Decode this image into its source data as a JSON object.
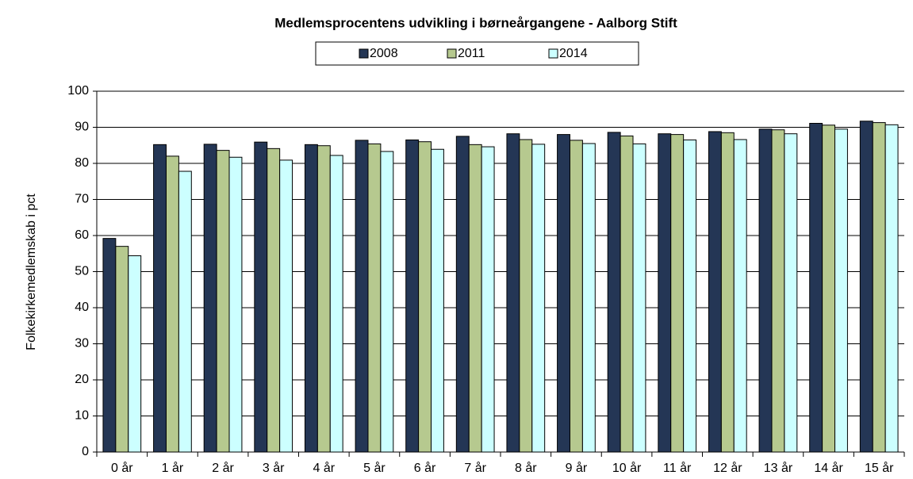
{
  "chart_data": {
    "type": "bar",
    "title": "Medlemsprocentens udvikling i børneårgangene - Aalborg Stift",
    "y_label": "Folkekirkemedlemskab i pct",
    "categories": [
      "0 år",
      "1 år",
      "2 år",
      "3 år",
      "4 år",
      "5 år",
      "6 år",
      "7 år",
      "8 år",
      "9 år",
      "10 år",
      "11 år",
      "12 år",
      "13 år",
      "14 år",
      "15 år"
    ],
    "series": [
      {
        "name": "2008",
        "color": "#243655",
        "values": [
          59.2,
          85.2,
          85.3,
          85.9,
          85.2,
          86.4,
          86.5,
          87.5,
          88.2,
          88.0,
          88.6,
          88.2,
          88.8,
          89.5,
          91.1,
          91.7
        ]
      },
      {
        "name": "2011",
        "color": "#b6c98f",
        "values": [
          57.0,
          82.0,
          83.6,
          84.1,
          84.9,
          85.4,
          86.0,
          85.2,
          86.6,
          86.4,
          87.6,
          88.0,
          88.5,
          89.3,
          90.6,
          91.3
        ]
      },
      {
        "name": "2014",
        "color": "#ccffff",
        "values": [
          54.4,
          77.8,
          81.7,
          80.9,
          82.2,
          83.3,
          83.9,
          84.6,
          85.3,
          85.5,
          85.4,
          86.5,
          86.6,
          88.2,
          89.5,
          90.7
        ]
      }
    ],
    "ylim": [
      0,
      100
    ],
    "yticks": [
      0,
      10,
      20,
      30,
      40,
      50,
      60,
      70,
      80,
      90,
      100
    ],
    "grid": true,
    "legend": "top"
  }
}
